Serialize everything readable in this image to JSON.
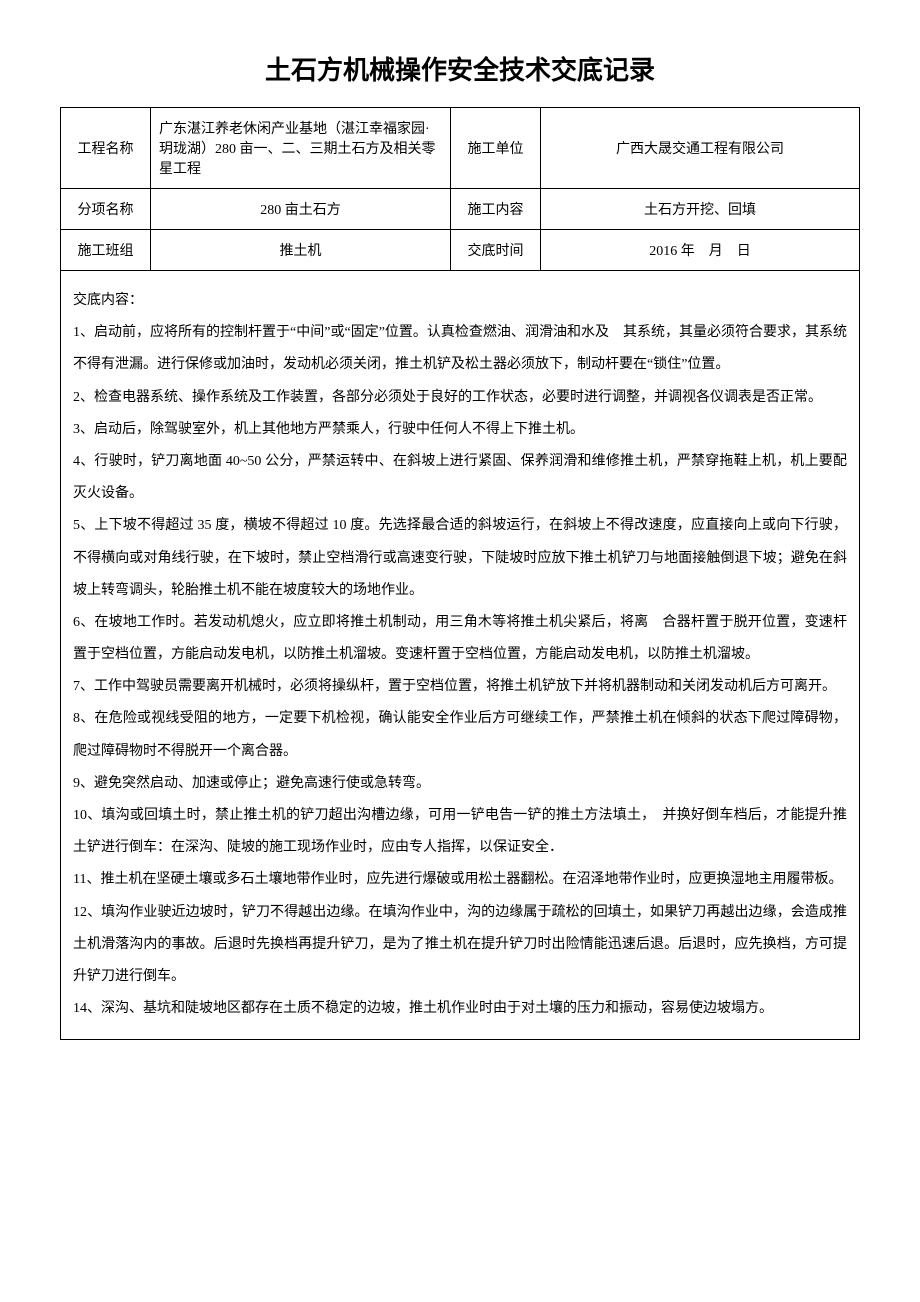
{
  "title": "土石方机械操作安全技术交底记录",
  "header": {
    "project_label": "工程名称",
    "project_value": "广东湛江养老休闲产业基地（湛江幸福家园·玥珑湖）280 亩一、二、三期土石方及相关零星工程",
    "unit_label": "施工单位",
    "unit_value": "广西大晟交通工程有限公司",
    "item_label": "分项名称",
    "item_value": "280 亩土石方",
    "work_label": "施工内容",
    "work_value": "土石方开挖、回填",
    "team_label": "施工班组",
    "team_value": "推土机",
    "time_label": "交底时间",
    "time_value": "2016 年　月　日"
  },
  "content": {
    "heading": "交底内容：",
    "p1": "1、启动前，应将所有的控制杆置于“中间”或“固定”位置。认真检查燃油、润滑油和水及　其系统，其量必须符合要求，其系统不得有泄漏。进行保修或加油时，发动机必须关闭，推土机铲及松土器必须放下，制动杆要在“锁住”位置。",
    "p2": "2、检查电器系统、操作系统及工作装置，各部分必须处于良好的工作状态，必要时进行调整，并调视各仪调表是否正常。",
    "p3": "3、启动后，除驾驶室外，机上其他地方严禁乘人，行驶中任何人不得上下推土机。",
    "p4": "4、行驶时，铲刀离地面 40~50 公分，严禁运转中、在斜坡上进行紧固、保养润滑和维修推土机，严禁穿拖鞋上机，机上要配灭火设备。",
    "p5": "5、上下坡不得超过 35 度，横坡不得超过 10 度。先选择最合适的斜坡运行，在斜坡上不得改速度，应直接向上或向下行驶，不得横向或对角线行驶，在下坡时，禁止空档滑行或高速变行驶，下陡坡时应放下推土机铲刀与地面接触倒退下坡；避免在斜坡上转弯调头，轮胎推土机不能在坡度较大的场地作业。",
    "p6": "6、在坡地工作时。若发动机熄火，应立即将推土机制动，用三角木等将推土机尖紧后，将离　合器杆置于脱开位置，变速杆置于空档位置，方能启动发电机，以防推土机溜坡。变速杆置于空档位置，方能启动发电机，以防推土机溜坡。",
    "p7": "7、工作中驾驶员需要离开机械时，必须将操纵杆，置于空档位置，将推土机铲放下并将机器制动和关闭发动机后方可离开。",
    "p8": "8、在危险或视线受阻的地方，一定要下机检视，确认能安全作业后方可继续工作，严禁推土机在倾斜的状态下爬过障碍物，爬过障碍物时不得脱开一个离合器。",
    "p9": "9、避免突然启动、加速或停止；避免高速行使或急转弯。",
    "p10": "10、填沟或回填土时，禁止推土机的铲刀超出沟槽边缘，可用一铲电告一铲的推土方法填土，　并换好倒车档后，才能提升推土铲进行倒车：在深沟、陡坡的施工现场作业时，应由专人指挥，以保证安全．",
    "p11": "11、推土机在坚硬土壤或多石土壤地带作业时，应先进行爆破或用松土器翻松。在沼泽地带作业时，应更换湿地主用履带板。",
    "p12": "12、填沟作业驶近边坡时，铲刀不得越出边缘。在填沟作业中，沟的边缘属于疏松的回填土，如果铲刀再越出边缘，会造成推土机滑落沟内的事故。后退时先换档再提升铲刀，是为了推土机在提升铲刀时出险情能迅速后退。后退时，应先换档，方可提升铲刀进行倒车。",
    "p14": "14、深沟、基坑和陡坡地区都存在土质不稳定的边坡，推土机作业时由于对土壤的压力和振动，容易使边坡塌方。"
  }
}
